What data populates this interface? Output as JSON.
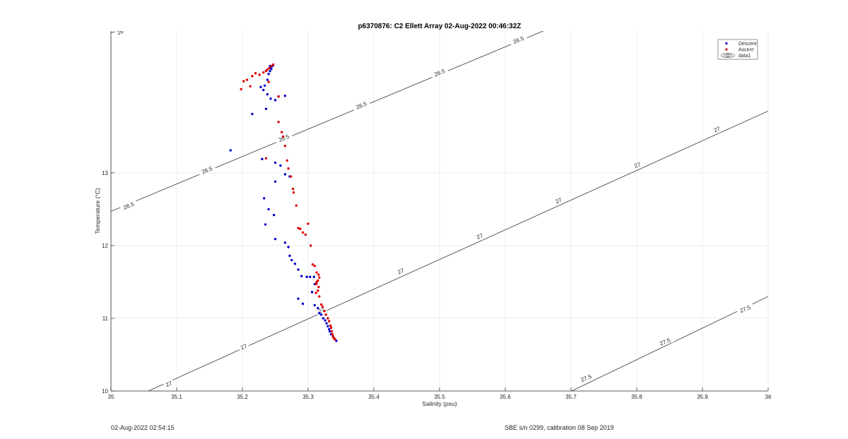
{
  "footer": {
    "timestamp": "02-Aug-2022 02:54:15",
    "calibration": "SBE s/n 0299, calibration 08 Sep 2019"
  },
  "chart_data": {
    "type": "scatter",
    "title": "p6370876: C2 Ellett Array 02-Aug-2022 00:46:32Z",
    "xlabel": "Salinity (psu)",
    "ylabel": "Temperature (°C)",
    "xlim": [
      35,
      36
    ],
    "ylim": [
      10,
      14.95
    ],
    "xticks": [
      35,
      35.1,
      35.2,
      35.3,
      35.4,
      35.5,
      35.6,
      35.7,
      35.8,
      35.9,
      36
    ],
    "xtick_labels": [
      "35",
      "35.1",
      "35.2",
      "35.3",
      "35.4",
      "35.5",
      "35.6",
      "35.7",
      "35.8",
      "35.9",
      "36"
    ],
    "yticks": [
      10,
      11,
      12,
      13
    ],
    "ytick_labels": [
      "10",
      "11",
      "12",
      "13"
    ],
    "grid": true,
    "legend": {
      "placement": "top-right",
      "entries": [
        {
          "label": "Descent",
          "color": "#0000cc"
        },
        {
          "label": "Ascent",
          "color": "#dd0000"
        },
        {
          "label": "data1",
          "color": "#000000"
        }
      ]
    },
    "contours": [
      {
        "level": "26",
        "points": [
          [
            35.0,
            14.93
          ],
          [
            35.071,
            15.05
          ]
        ]
      },
      {
        "level": "26.5",
        "points": [
          [
            35.0,
            12.47
          ],
          [
            35.684,
            15.05
          ]
        ]
      },
      {
        "level": "27",
        "points": [
          [
            35.057,
            10.0
          ],
          [
            36.0,
            13.85
          ]
        ]
      },
      {
        "level": "27.5",
        "points": [
          [
            35.701,
            10.0
          ],
          [
            36.0,
            11.3
          ]
        ]
      }
    ],
    "contour_labels": [
      {
        "text": "26",
        "x": 35.014,
        "y": 14.94
      },
      {
        "text": "26.5",
        "x": 35.027,
        "y": 12.55
      },
      {
        "text": "26.5",
        "x": 35.146,
        "y": 13.04
      },
      {
        "text": "26.5",
        "x": 35.263,
        "y": 13.48
      },
      {
        "text": "26.5",
        "x": 35.381,
        "y": 13.93
      },
      {
        "text": "26.5",
        "x": 35.5,
        "y": 14.38
      },
      {
        "text": "26.5",
        "x": 35.62,
        "y": 14.83
      },
      {
        "text": "27",
        "x": 35.088,
        "y": 10.1
      },
      {
        "text": "27",
        "x": 35.202,
        "y": 10.61
      },
      {
        "text": "27",
        "x": 35.32,
        "y": 11.11
      },
      {
        "text": "27",
        "x": 35.441,
        "y": 11.65
      },
      {
        "text": "27",
        "x": 35.561,
        "y": 12.13
      },
      {
        "text": "27",
        "x": 35.681,
        "y": 12.62
      },
      {
        "text": "27",
        "x": 35.801,
        "y": 13.11
      },
      {
        "text": "27",
        "x": 35.922,
        "y": 13.6
      },
      {
        "text": "27.5",
        "x": 35.723,
        "y": 10.18
      },
      {
        "text": "27.5",
        "x": 35.843,
        "y": 10.68
      },
      {
        "text": "27.5",
        "x": 35.965,
        "y": 11.13
      }
    ],
    "series": [
      {
        "name": "Descent",
        "color": "#0000cc",
        "x": [
          35.245,
          35.242,
          35.246,
          35.243,
          35.244,
          35.242,
          35.24,
          35.238,
          35.234,
          35.228,
          35.232,
          35.238,
          35.243,
          35.255,
          35.265,
          35.25,
          35.236,
          35.215,
          35.182,
          35.23,
          35.25,
          35.258,
          35.265,
          35.272,
          35.25,
          35.233,
          35.24,
          35.248,
          35.235,
          35.25,
          35.265,
          35.27,
          35.272,
          35.275,
          35.28,
          35.285,
          35.29,
          35.298,
          35.303,
          35.309,
          35.306,
          35.31,
          35.313,
          35.285,
          35.292,
          35.31,
          35.315,
          35.317,
          35.32,
          35.323,
          35.326,
          35.328,
          35.33,
          35.332,
          35.333,
          35.335,
          35.338,
          35.343
        ],
        "y": [
          14.47,
          14.47,
          14.47,
          14.45,
          14.43,
          14.4,
          14.36,
          14.28,
          14.2,
          14.18,
          14.14,
          14.08,
          14.02,
          14.05,
          14.06,
          14.0,
          13.88,
          13.81,
          13.31,
          13.19,
          13.14,
          13.1,
          12.98,
          12.95,
          12.88,
          12.65,
          12.5,
          12.42,
          12.29,
          12.09,
          12.04,
          11.98,
          11.86,
          11.8,
          11.75,
          11.67,
          11.58,
          11.57,
          11.57,
          11.57,
          11.36,
          11.47,
          11.49,
          11.27,
          11.2,
          11.18,
          11.14,
          11.07,
          11.05,
          11.0,
          10.97,
          10.93,
          10.89,
          10.85,
          10.82,
          10.78,
          10.75,
          10.69
        ]
      },
      {
        "name": "Ascent",
        "color": "#dd0000",
        "x": [
          35.247,
          35.244,
          35.241,
          35.238,
          35.236,
          35.232,
          35.226,
          35.22,
          35.215,
          35.207,
          35.202,
          35.212,
          35.198,
          35.24,
          35.255,
          35.255,
          35.26,
          35.262,
          35.265,
          35.236,
          35.268,
          35.27,
          35.274,
          35.277,
          35.278,
          35.282,
          35.285,
          35.288,
          35.292,
          35.296,
          35.3,
          35.304,
          35.307,
          35.31,
          35.313,
          35.316,
          35.317,
          35.315,
          35.313,
          35.312,
          35.316,
          35.315,
          35.312,
          35.317,
          35.32,
          35.322,
          35.325,
          35.327,
          35.33,
          35.332,
          35.334,
          35.335,
          35.336,
          35.337,
          35.338,
          35.339,
          35.34,
          35.341
        ],
        "y": [
          14.49,
          14.47,
          14.44,
          14.42,
          14.4,
          14.38,
          14.35,
          14.37,
          14.33,
          14.28,
          14.26,
          14.19,
          14.15,
          14.25,
          14.05,
          13.7,
          13.56,
          13.5,
          13.37,
          13.2,
          13.17,
          13.06,
          12.95,
          12.78,
          12.73,
          12.55,
          12.24,
          12.23,
          12.18,
          12.15,
          12.3,
          12.0,
          11.74,
          11.72,
          11.63,
          11.6,
          11.56,
          11.52,
          11.5,
          11.47,
          11.43,
          11.38,
          11.35,
          11.3,
          11.19,
          11.16,
          11.1,
          11.05,
          11.0,
          10.96,
          10.9,
          10.87,
          10.82,
          10.78,
          10.75,
          10.73,
          10.72,
          10.71
        ]
      }
    ]
  }
}
